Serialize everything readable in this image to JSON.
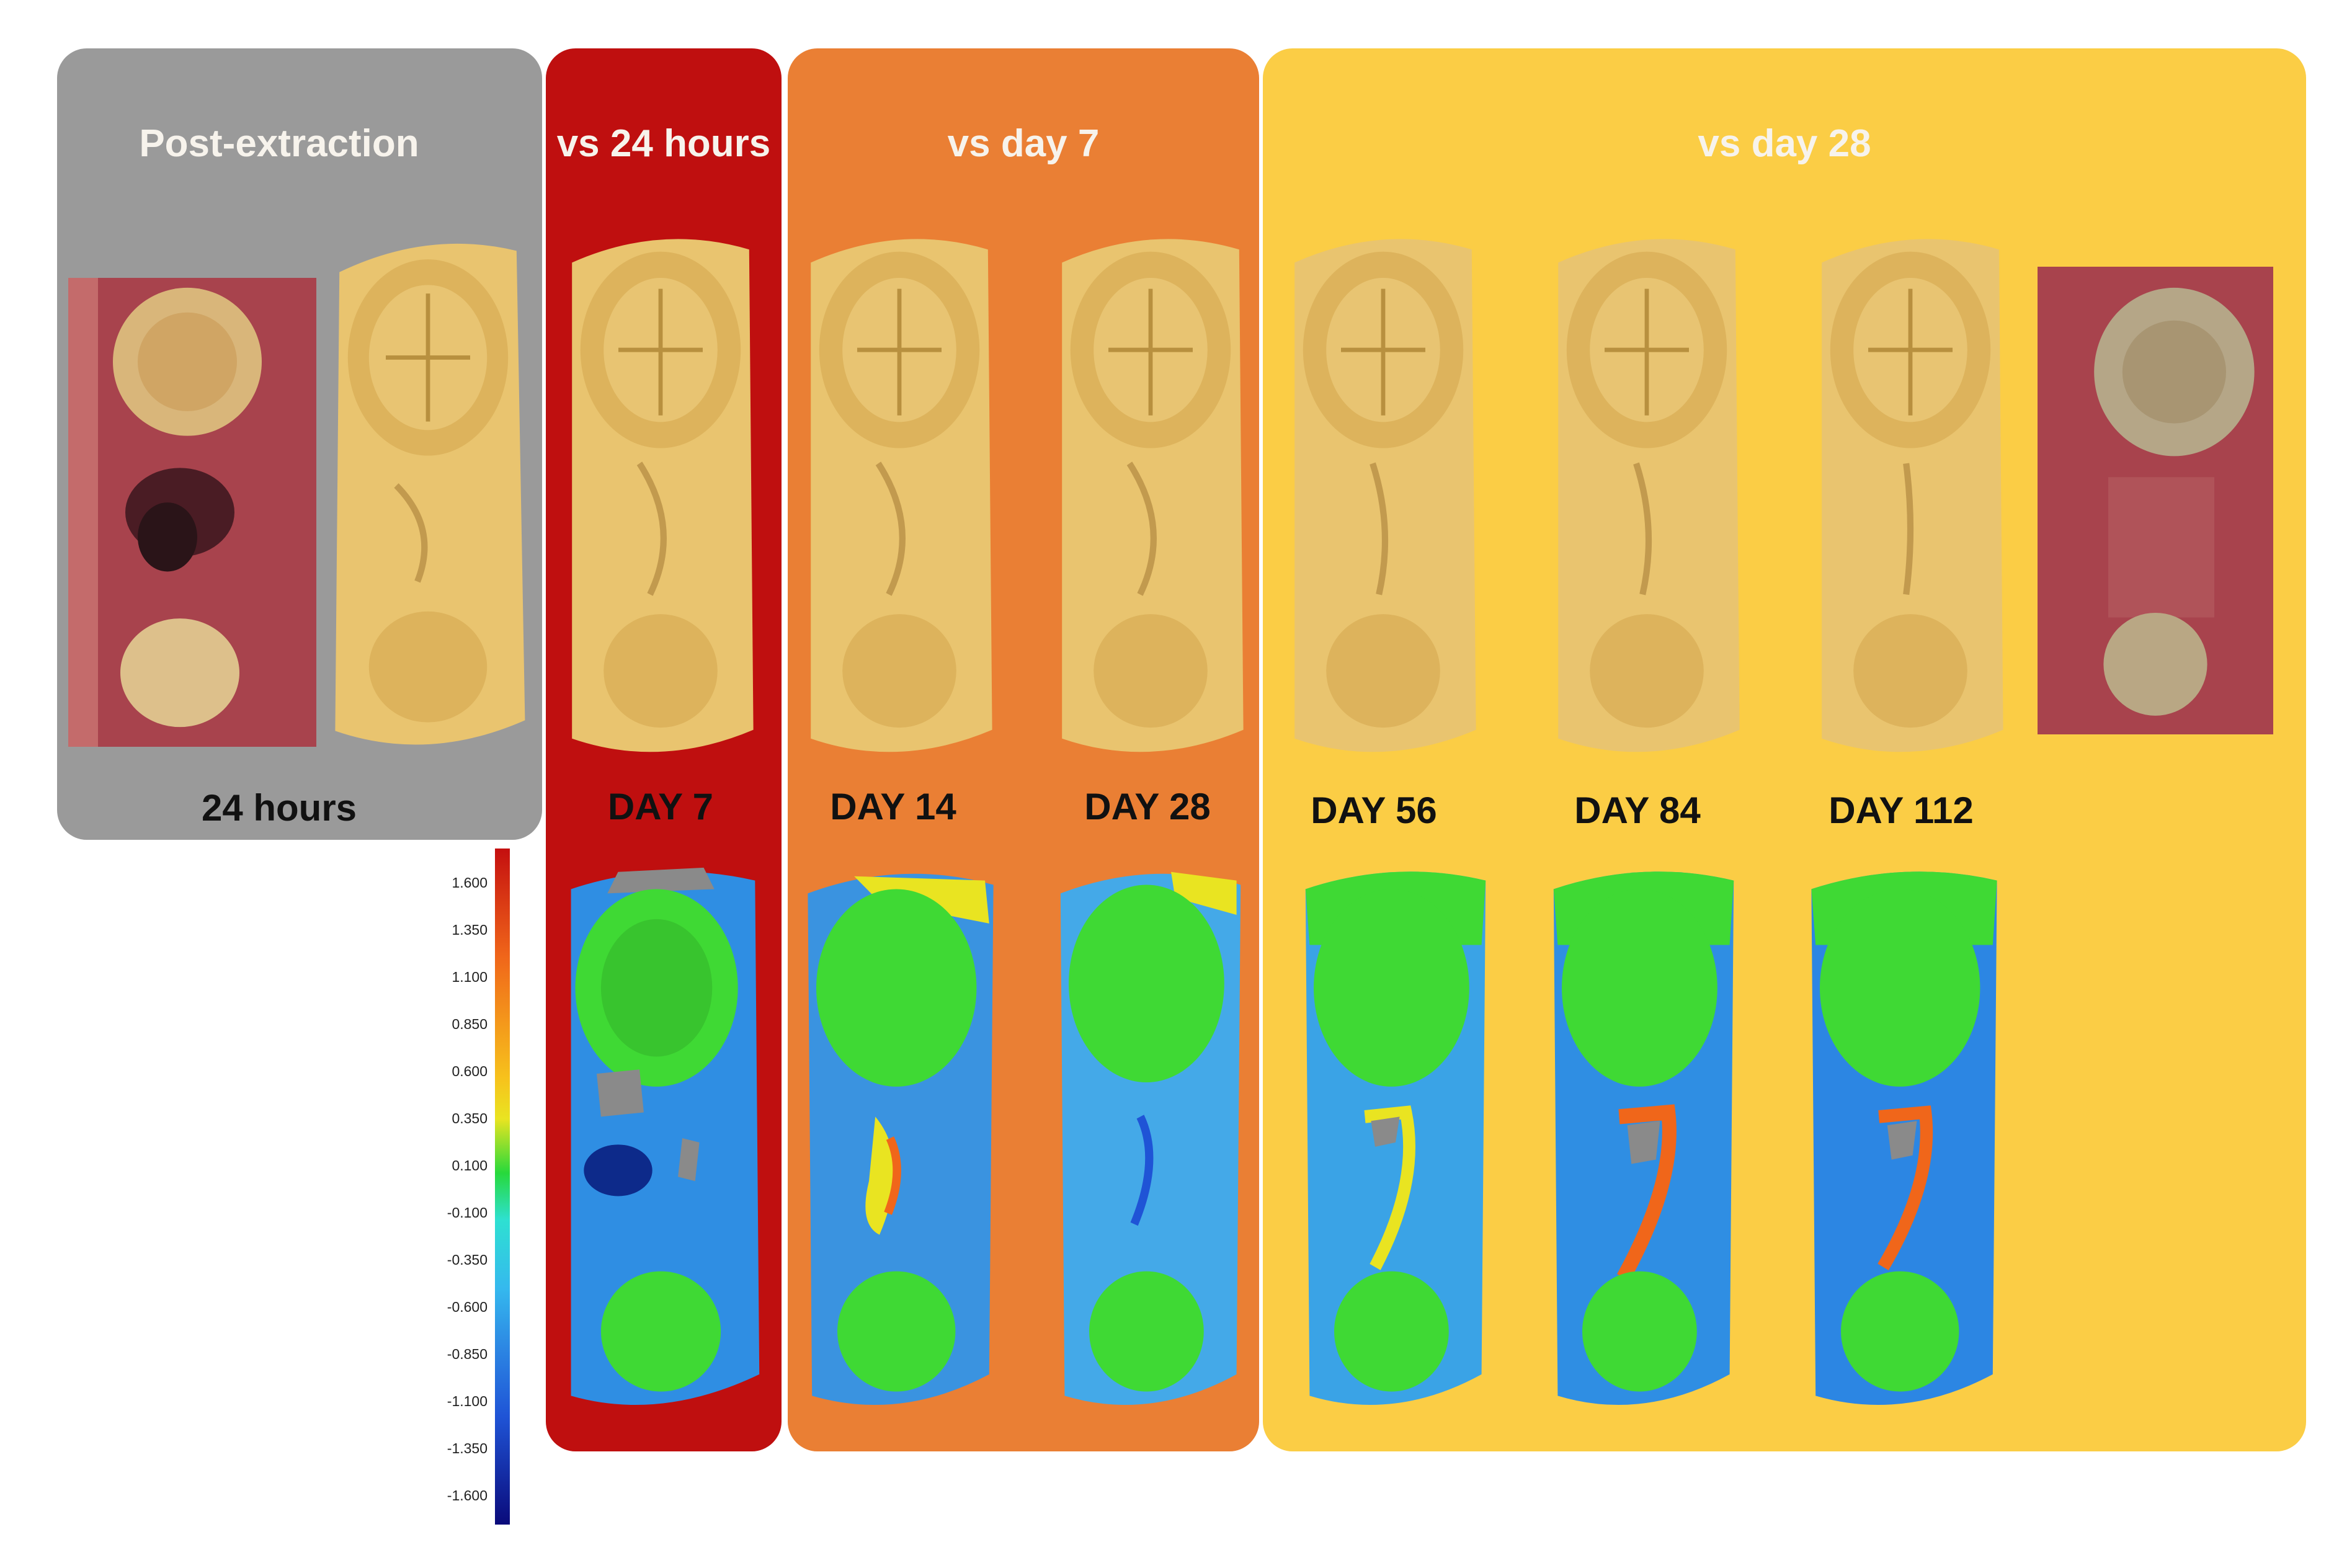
{
  "panels": {
    "post_extraction": {
      "title": "Post-extraction",
      "color": "#9a9a9a",
      "photo_label": "24 hours"
    },
    "vs_24h": {
      "title": "vs 24 hours",
      "color": "#bf0f0f"
    },
    "vs_day7": {
      "title": "vs day 7",
      "color": "#ea7f34"
    },
    "vs_day28": {
      "title": "vs day 28",
      "color": "#fbcd45"
    }
  },
  "day_labels": [
    "DAY 7",
    "DAY 14",
    "DAY 28",
    "DAY 56",
    "DAY 84",
    "DAY 112"
  ],
  "color_scale": {
    "ticks": [
      "1.600",
      "1.350",
      "1.100",
      "0.850",
      "0.600",
      "0.350",
      "0.100",
      "-0.100",
      "-0.350",
      "-0.600",
      "-0.850",
      "-1.100",
      "-1.350",
      "-1.600"
    ],
    "colors": [
      "#c40f0f",
      "#e23a12",
      "#f0661a",
      "#f6941e",
      "#f7c21c",
      "#e9e421",
      "#8ee62a",
      "#27d93b",
      "#2ee0d2",
      "#35b9ee",
      "#2c86e3",
      "#1f54d6",
      "#1426b4",
      "#0a0a7a"
    ]
  },
  "colors": {
    "model_gold": "#e9c46f",
    "tissue_pink": "#a8434d",
    "deviation_green": "#3fd934",
    "deviation_blue": "#2f8ee3"
  }
}
